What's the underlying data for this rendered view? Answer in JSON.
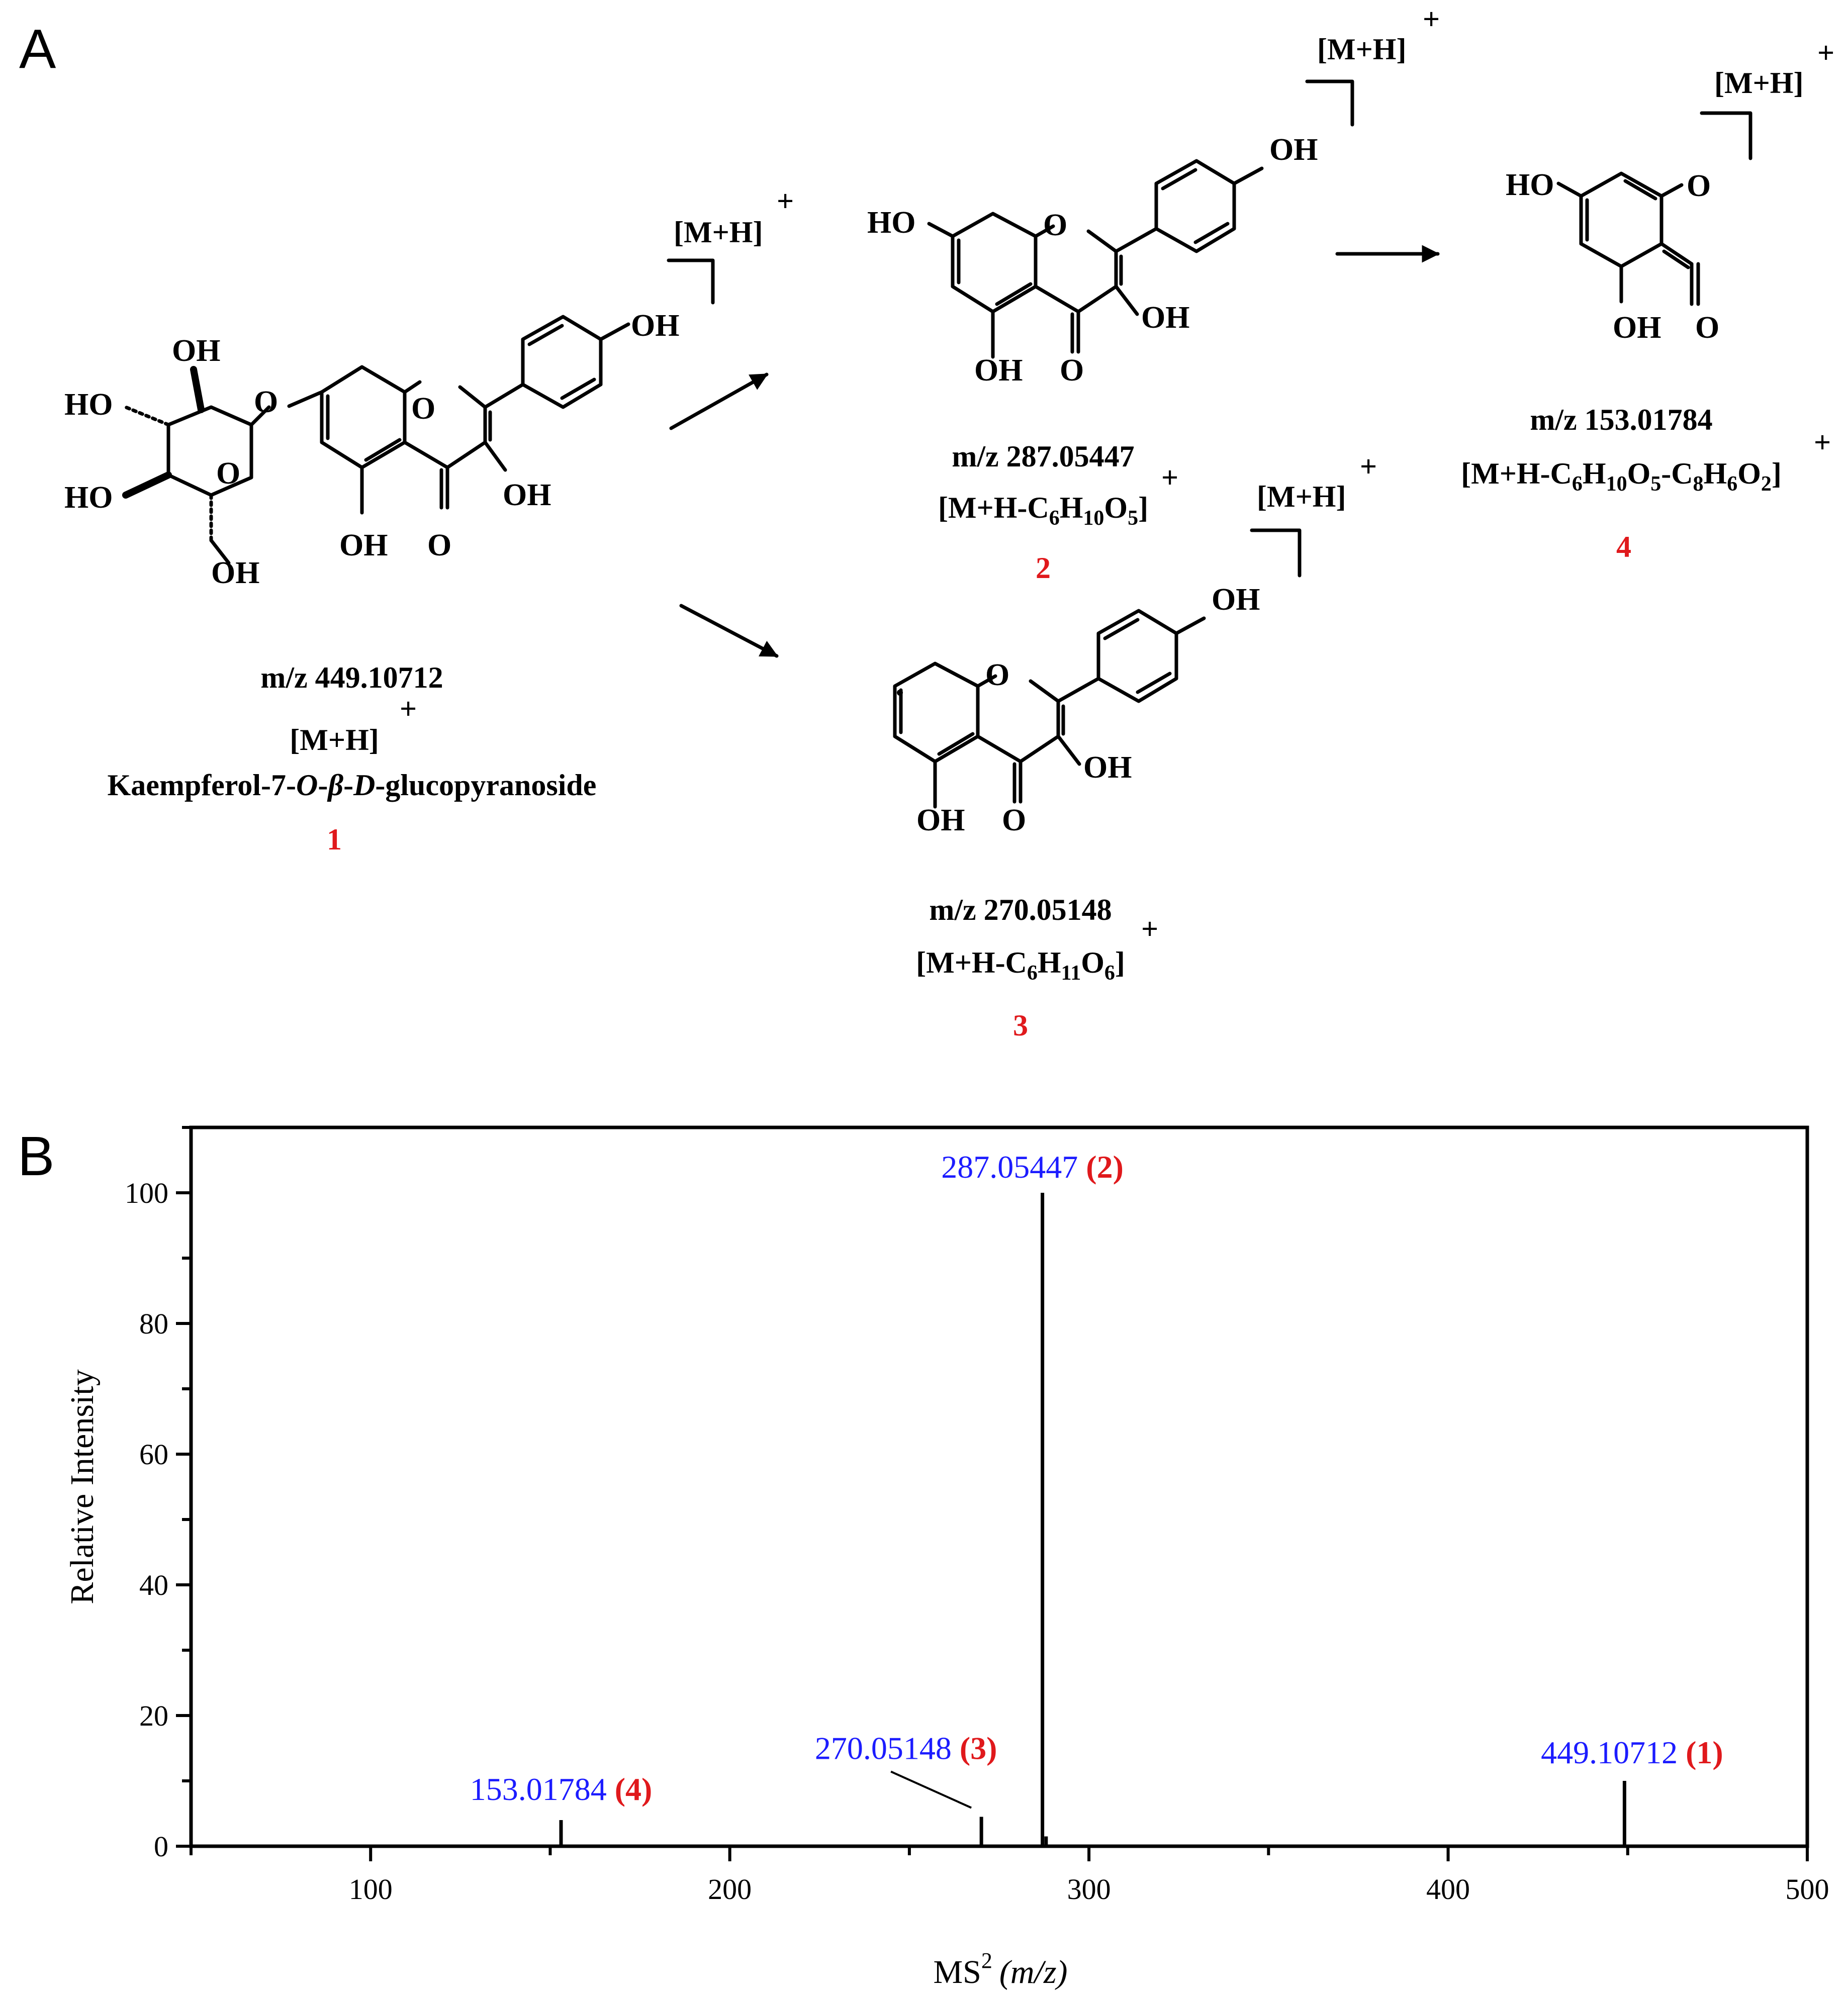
{
  "panel_a": {
    "letter": "A",
    "ion_label": "[M+H]",
    "ion_charge": "+",
    "atoms": {
      "oh": "OH",
      "ho": "HO",
      "o": "O"
    },
    "compounds": [
      {
        "id": "1",
        "mz_text": "m/z 449.10712",
        "formula_text": "[M+H]",
        "formula_charge": "+",
        "name_pre": "Kaempferol-7-",
        "name_o": "O",
        "name_dash1": "-",
        "name_beta": "β",
        "name_dash2": "-",
        "name_d": "D",
        "name_post": "-glucopyranoside"
      },
      {
        "id": "2",
        "mz_text": "m/z 287.05447",
        "f_a": "[M+H-C",
        "f_s1": "6",
        "f_b": "H",
        "f_s2": "10",
        "f_c": "O",
        "f_s3": "5",
        "f_d": "]",
        "charge": "+"
      },
      {
        "id": "3",
        "mz_text": "m/z 270.05148",
        "f_a": "[M+H-C",
        "f_s1": "6",
        "f_b": "H",
        "f_s2": "11",
        "f_c": "O",
        "f_s3": "6",
        "f_d": "]",
        "charge": "+"
      },
      {
        "id": "4",
        "mz_text": "m/z 153.01784",
        "f_a": "[M+H-C",
        "f_s1": "6",
        "f_b": "H",
        "f_s2": "10",
        "f_c": "O",
        "f_s3": "5",
        "f_d": "-C",
        "f_s4": "8",
        "f_e": "H",
        "f_s5": "6",
        "f_f": "O",
        "f_s6": "2",
        "f_g": "]",
        "charge": "+"
      }
    ]
  },
  "panel_b": {
    "letter": "B"
  },
  "chart_data": {
    "type": "bar",
    "title": "",
    "xlabel_main": "MS",
    "xlabel_sup": "2",
    "xlabel_unit": "(m/z)",
    "ylabel": "Relative Intensity",
    "xlim": [
      50,
      500
    ],
    "ylim": [
      0,
      110
    ],
    "xticks": [
      100,
      200,
      300,
      400,
      500
    ],
    "yticks": [
      0,
      20,
      40,
      60,
      80,
      100
    ],
    "grid": false,
    "peaks": [
      {
        "mz": 153.01784,
        "intensity": 4,
        "label_mz": "153.01784",
        "label_id": "(4)"
      },
      {
        "mz": 270.05148,
        "intensity": 4.5,
        "label_mz": "270.05148",
        "label_id": "(3)"
      },
      {
        "mz": 287.05447,
        "intensity": 100,
        "label_mz": "287.05447",
        "label_id": "(2)"
      },
      {
        "mz": 288.06,
        "intensity": 1.5,
        "label_mz": "",
        "label_id": ""
      },
      {
        "mz": 449.10712,
        "intensity": 10,
        "label_mz": "449.10712",
        "label_id": "(1)"
      }
    ],
    "colors": {
      "label_mz": "#1c1cff",
      "label_id": "#e0191c",
      "bars": "#000000"
    }
  }
}
